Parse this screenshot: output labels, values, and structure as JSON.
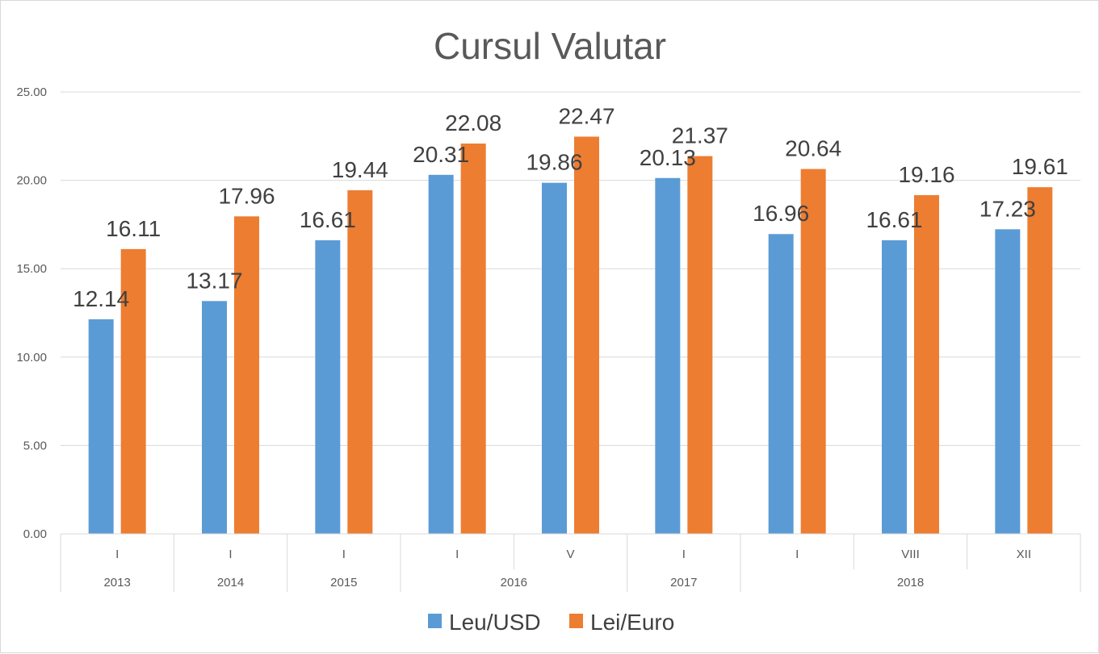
{
  "chart_data": {
    "type": "bar",
    "title": "Cursul Valutar",
    "xlabel": "",
    "ylabel": "",
    "ylim": [
      0,
      25
    ],
    "yticks": [
      "0.00",
      "5.00",
      "10.00",
      "15.00",
      "20.00",
      "25.00"
    ],
    "grid": true,
    "legend_position": "bottom",
    "categories": [
      "I",
      "I",
      "I",
      "I",
      "V",
      "I",
      "I",
      "VIII",
      "XII"
    ],
    "year_groups": [
      {
        "label": "2013",
        "span": 1
      },
      {
        "label": "2014",
        "span": 1
      },
      {
        "label": "2015",
        "span": 1
      },
      {
        "label": "2016",
        "span": 2
      },
      {
        "label": "2017",
        "span": 1
      },
      {
        "label": "2018",
        "span": 3
      }
    ],
    "series": [
      {
        "name": "Leu/USD",
        "color": "#5b9bd5",
        "values": [
          12.14,
          13.17,
          16.61,
          20.31,
          19.86,
          20.13,
          16.96,
          16.61,
          17.23
        ],
        "labels": [
          "12.14",
          "13.17",
          "16.61",
          "20.31",
          "19.86",
          "20.13",
          "16.96",
          "16.61",
          "17.23"
        ]
      },
      {
        "name": "Lei/Euro",
        "color": "#ed7d31",
        "values": [
          16.11,
          17.96,
          19.44,
          22.08,
          22.47,
          21.37,
          20.64,
          19.16,
          19.61
        ],
        "labels": [
          "16.11",
          "17.96",
          "19.44",
          "22.08",
          "22.47",
          "21.37",
          "20.64",
          "19.16",
          "19.61"
        ]
      }
    ]
  }
}
